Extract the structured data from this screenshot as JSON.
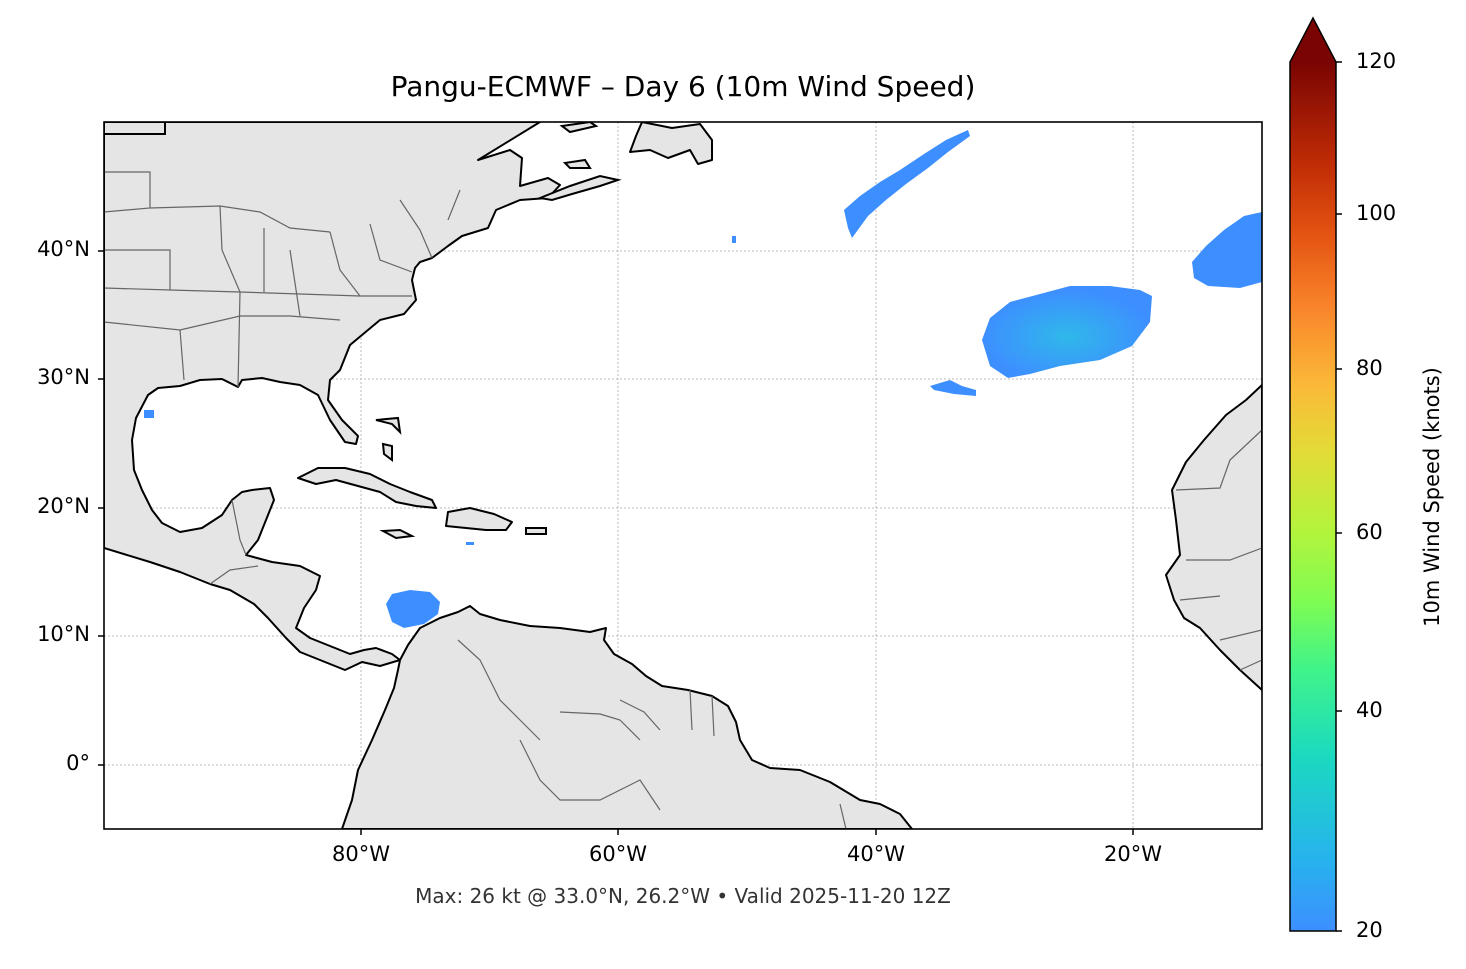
{
  "map": {
    "title": "Pangu-ECMWF – Day 6 (10m Wind Speed)",
    "subtitle": "Max: 26 kt @ 33.0°N, 26.2°W • Valid 2025-11-20 12Z",
    "extent": {
      "lon_min": -100,
      "lon_max": -10,
      "lat_min": -5,
      "lat_max": 50
    },
    "gridlines": true,
    "lat_ticks": [
      {
        "value": 40,
        "label": "40°N"
      },
      {
        "value": 30,
        "label": "30°N"
      },
      {
        "value": 20,
        "label": "20°N"
      },
      {
        "value": 10,
        "label": "10°N"
      },
      {
        "value": 0,
        "label": "0°"
      }
    ],
    "lon_ticks": [
      {
        "value": -80,
        "label": "80°W"
      },
      {
        "value": -60,
        "label": "60°W"
      },
      {
        "value": -40,
        "label": "40°W"
      },
      {
        "value": -20,
        "label": "20°W"
      }
    ],
    "colors": {
      "land": "#e5e5e5",
      "ocean": "#ffffff",
      "coast": "#000000",
      "borders": "#666666",
      "wind_patch": "#3d8fff",
      "wind_core": "#2db4ec"
    },
    "wind_areas": [
      {
        "name": "central-atlantic-high-wind",
        "center": [
          -26.2,
          33.5
        ],
        "note": "max 26 kt"
      },
      {
        "name": "north-atlantic-streak",
        "center": [
          -38,
          46
        ]
      },
      {
        "name": "northeast-atlantic-area",
        "center": [
          -13,
          41
        ]
      },
      {
        "name": "caribbean-area",
        "center": [
          -76.5,
          12.3
        ]
      }
    ]
  },
  "colorbar": {
    "label": "10m Wind Speed (knots)",
    "min": 20,
    "max": 120,
    "extend": "max",
    "ticks": [
      {
        "value": 20,
        "label": "20"
      },
      {
        "value": 40,
        "label": "40"
      },
      {
        "value": 60,
        "label": "60"
      },
      {
        "value": 80,
        "label": "80"
      },
      {
        "value": 100,
        "label": "100"
      },
      {
        "value": 120,
        "label": "120"
      }
    ],
    "colormap": "turbo"
  }
}
